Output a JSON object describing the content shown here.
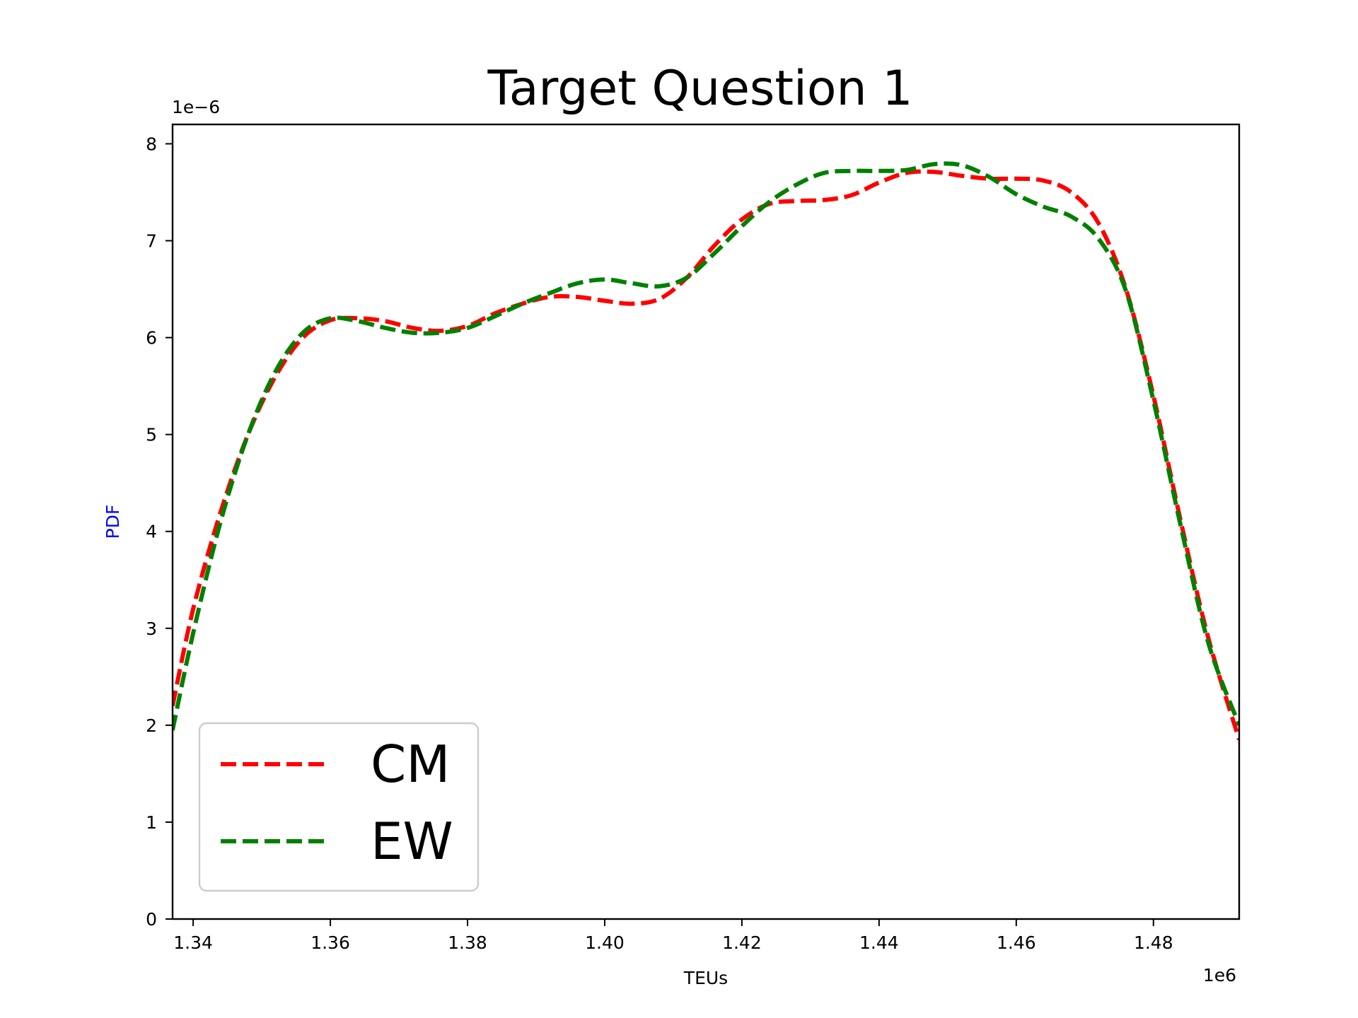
{
  "chart_data": {
    "type": "line",
    "title": "Target Question 1",
    "xlabel": "TEUs",
    "ylabel": "PDF",
    "ylabel_color": "#0000ff",
    "x_offset_label": "1e6",
    "y_offset_label": "1e−6",
    "xlim": [
      1.337,
      1.4925
    ],
    "ylim": [
      0,
      8.2
    ],
    "xticks": [
      1.34,
      1.36,
      1.38,
      1.4,
      1.42,
      1.44,
      1.46,
      1.48
    ],
    "xtick_labels": [
      "1.34",
      "1.36",
      "1.38",
      "1.40",
      "1.42",
      "1.44",
      "1.46",
      "1.48"
    ],
    "yticks": [
      0,
      1,
      2,
      3,
      4,
      5,
      6,
      7,
      8
    ],
    "ytick_labels": [
      "0",
      "1",
      "2",
      "3",
      "4",
      "5",
      "6",
      "7",
      "8"
    ],
    "grid": false,
    "legend_position": "lower-left",
    "series": [
      {
        "name": "CM",
        "color": "#ff0000",
        "style": "dashed",
        "x": [
          1.337,
          1.34,
          1.344,
          1.348,
          1.352,
          1.356,
          1.36,
          1.364,
          1.368,
          1.372,
          1.376,
          1.38,
          1.384,
          1.388,
          1.392,
          1.396,
          1.4,
          1.404,
          1.408,
          1.412,
          1.416,
          1.42,
          1.424,
          1.428,
          1.432,
          1.436,
          1.44,
          1.444,
          1.448,
          1.452,
          1.456,
          1.46,
          1.464,
          1.468,
          1.472,
          1.476,
          1.48,
          1.484,
          1.488,
          1.4925
        ],
        "y": [
          2.2,
          3.2,
          4.2,
          5.0,
          5.6,
          6.0,
          6.18,
          6.2,
          6.17,
          6.1,
          6.07,
          6.12,
          6.25,
          6.35,
          6.42,
          6.42,
          6.38,
          6.35,
          6.4,
          6.62,
          6.95,
          7.22,
          7.38,
          7.41,
          7.42,
          7.47,
          7.6,
          7.7,
          7.71,
          7.67,
          7.64,
          7.64,
          7.62,
          7.5,
          7.18,
          6.5,
          5.4,
          4.1,
          2.9,
          1.85
        ]
      },
      {
        "name": "EW",
        "color": "#008000",
        "style": "dashed",
        "x": [
          1.337,
          1.34,
          1.344,
          1.348,
          1.352,
          1.356,
          1.36,
          1.364,
          1.368,
          1.372,
          1.376,
          1.38,
          1.384,
          1.388,
          1.392,
          1.396,
          1.4,
          1.404,
          1.408,
          1.412,
          1.416,
          1.42,
          1.424,
          1.428,
          1.432,
          1.436,
          1.44,
          1.444,
          1.448,
          1.452,
          1.456,
          1.46,
          1.464,
          1.468,
          1.472,
          1.476,
          1.48,
          1.484,
          1.488,
          1.4925
        ],
        "y": [
          1.95,
          2.95,
          4.1,
          5.0,
          5.65,
          6.05,
          6.2,
          6.17,
          6.1,
          6.05,
          6.05,
          6.1,
          6.22,
          6.35,
          6.46,
          6.56,
          6.6,
          6.56,
          6.53,
          6.62,
          6.87,
          7.15,
          7.4,
          7.58,
          7.7,
          7.72,
          7.72,
          7.73,
          7.79,
          7.78,
          7.66,
          7.48,
          7.35,
          7.25,
          7.02,
          6.48,
          5.35,
          4.05,
          2.85,
          2.0
        ]
      }
    ]
  }
}
